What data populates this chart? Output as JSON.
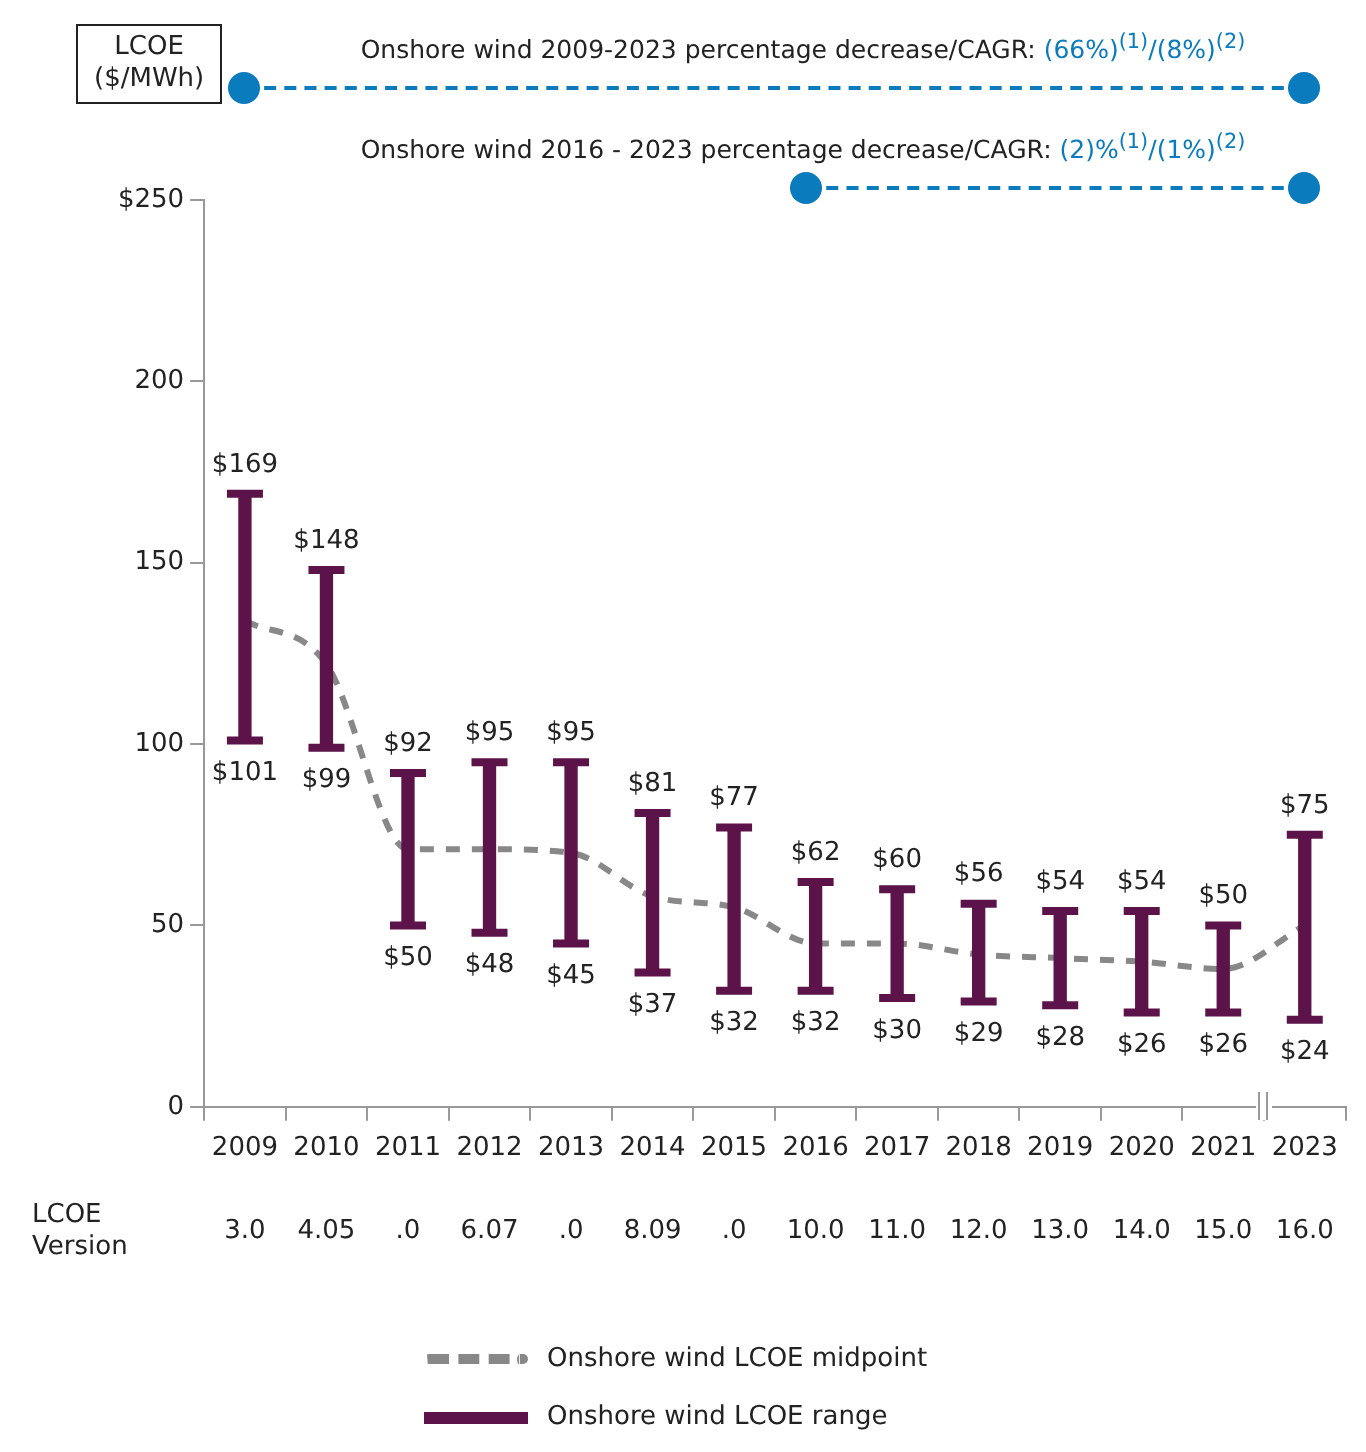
{
  "chart_data": {
    "type": "bar",
    "ylabel": "LCOE\n($/MWh)",
    "categories": [
      "2009",
      "2010",
      "2011",
      "2012",
      "2013",
      "2014",
      "2015",
      "2016",
      "2017",
      "2018",
      "2019",
      "2020",
      "2021",
      "2023"
    ],
    "series": [
      {
        "name": "Onshore wind LCOE range",
        "type": "bar",
        "color": "#5c1349",
        "values": [
          68,
          49,
          42,
          47,
          50,
          44,
          45,
          30,
          30,
          27,
          26,
          28,
          24,
          51
        ],
        "base": [
          101,
          99,
          50,
          48,
          45,
          37,
          32,
          32,
          30,
          29,
          28,
          26,
          26,
          24
        ],
        "value_labels": [
          "$169",
          "$148",
          "$92",
          "$95",
          "$95",
          "$81",
          "$77",
          "$62",
          "$60",
          "$56",
          "$54",
          "$54",
          "$50",
          "$75"
        ]
      },
      {
        "name": "Onshore wind LCOE midpoint",
        "type": "line",
        "color": "#888888",
        "line_style": "dashed",
        "values": [
          134,
          122,
          71,
          71,
          70,
          58,
          55,
          45,
          45,
          42,
          41,
          40,
          38,
          50
        ]
      }
    ],
    "ylim": [
      0,
      250
    ],
    "yticks": [
      0,
      50,
      100,
      150,
      200,
      {
        "value": 250,
        "label": "$250"
      }
    ],
    "grid": false,
    "legend": "bottom",
    "annotations": [
      "Onshore wind 2009-2023 percentage decrease/CAGR: (66%)$^{(1)}$/(8%)$^{(2)}$",
      "Onshore wind 2016 - 2023 percentage decrease/CAGR: (2)%$^{(1)}$/(1%)$^{(2)}$",
      {
        "text": "$101",
        "x": "2009",
        "y": 101
      },
      {
        "text": "$99",
        "x": "2010",
        "y": 99
      },
      {
        "text": "$50",
        "x": "2011",
        "y": 50
      },
      {
        "text": "$48",
        "x": "2012",
        "y": 48
      },
      {
        "text": "$45",
        "x": "2013",
        "y": 45
      },
      {
        "text": "$37",
        "x": "2014",
        "y": 37
      },
      {
        "text": "$32",
        "x": "2015",
        "y": 32
      },
      {
        "text": "$32",
        "x": "2016",
        "y": 32
      },
      {
        "text": "$30",
        "x": "2017",
        "y": 30
      },
      {
        "text": "$29",
        "x": "2018",
        "y": 29
      },
      {
        "text": "$28",
        "x": "2019",
        "y": 28
      },
      {
        "text": "$26",
        "x": "2020",
        "y": 26
      },
      {
        "text": "$26",
        "x": "2021",
        "y": 26
      },
      {
        "text": "$24",
        "x": "2023",
        "y": 24
      },
      "LCOE\nVersion",
      "3.0",
      "4.05",
      ".0",
      "6.07",
      ".0",
      "8.09",
      ".0",
      "10.0",
      "11.0",
      "12.0",
      "13.0",
      "14.0",
      "15.0",
      "16.0"
    ]
  }
}
